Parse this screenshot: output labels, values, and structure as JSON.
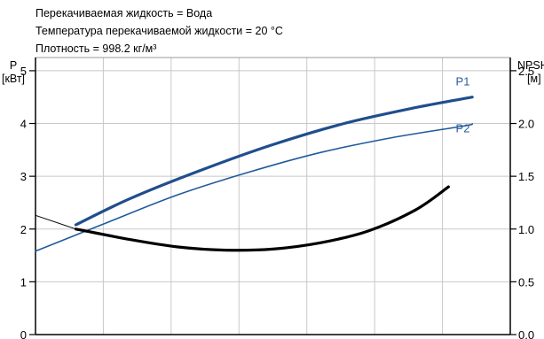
{
  "info_lines": [
    "Перекачиваемая жидкость = Вода",
    "Температура перекачиваемой жидкости = 20 °C",
    "Плотность = 998.2 кг/м³"
  ],
  "chart_data": {
    "type": "line",
    "left_axis": {
      "label_top": "P",
      "label_bottom": "[кВт]",
      "ylim": [
        0,
        5.25
      ],
      "ticks": [
        0,
        1,
        2,
        3,
        4,
        5
      ]
    },
    "right_axis": {
      "label_top": "NPSH",
      "label_bottom": "[м]",
      "ylim": [
        0,
        2.625
      ],
      "ticks": [
        "0.0",
        "0.5",
        "1.0",
        "1.5",
        "2.0",
        "2.5"
      ]
    },
    "xlim": [
      0,
      1
    ],
    "grid": true,
    "colors": {
      "P1": "#1f4e8c",
      "P2": "#1f5a9c",
      "NPSH": "#000000",
      "label": "#2a5d9f"
    },
    "series": [
      {
        "name": "P1",
        "axis": "left",
        "line_width": 3.2,
        "x": [
          0.085,
          0.2,
          0.35,
          0.5,
          0.65,
          0.8,
          0.92
        ],
        "y": [
          2.08,
          2.58,
          3.12,
          3.6,
          4.0,
          4.3,
          4.5
        ]
      },
      {
        "name": "P2",
        "axis": "left",
        "line_width": 1.6,
        "x": [
          0.0,
          0.15,
          0.3,
          0.45,
          0.6,
          0.75,
          0.9,
          0.92
        ],
        "y": [
          1.58,
          2.12,
          2.65,
          3.08,
          3.45,
          3.73,
          3.95,
          3.99
        ]
      },
      {
        "name": "NPSH_thin",
        "axis": "right",
        "line_width": 1.0,
        "x": [
          0.0,
          0.085
        ],
        "y": [
          1.13,
          1.0
        ]
      },
      {
        "name": "NPSH",
        "axis": "right",
        "line_width": 3.2,
        "x": [
          0.085,
          0.2,
          0.3,
          0.4,
          0.5,
          0.6,
          0.7,
          0.8,
          0.87
        ],
        "y": [
          1.0,
          0.9,
          0.83,
          0.8,
          0.81,
          0.87,
          0.98,
          1.18,
          1.4
        ]
      }
    ],
    "annotations": [
      {
        "text": "P1",
        "x": 0.9,
        "y": 4.72,
        "axis": "left"
      },
      {
        "text": "P2",
        "x": 0.9,
        "y": 3.83,
        "axis": "left"
      }
    ]
  }
}
